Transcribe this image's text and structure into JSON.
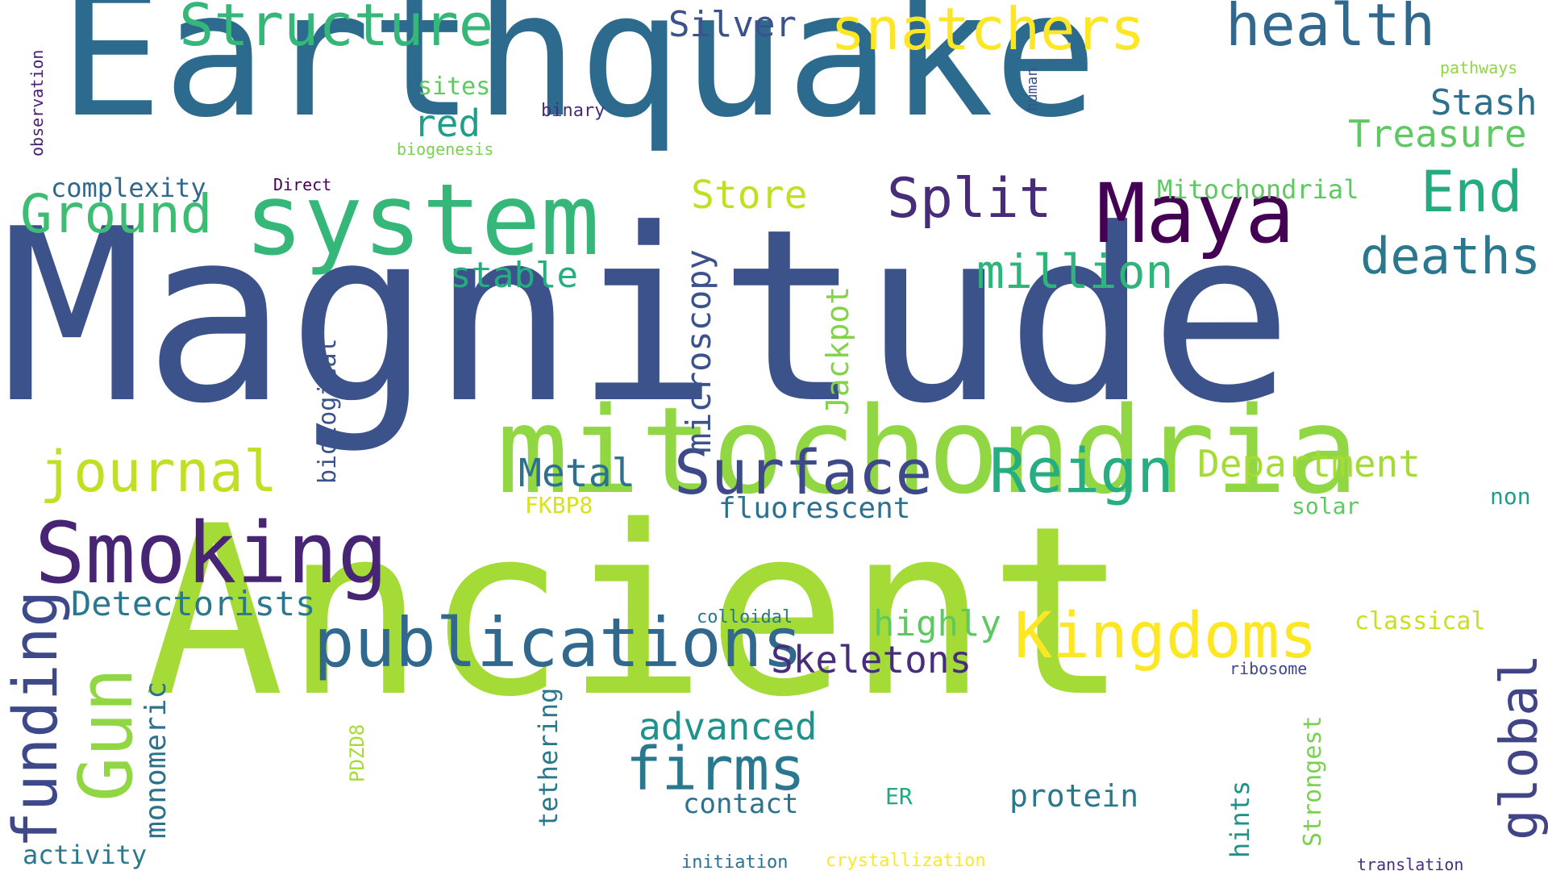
{
  "cloud": {
    "words": [
      {
        "text": "Magnitude",
        "color": "#3b528b"
      },
      {
        "text": "Earthquake",
        "color": "#2c6b8e"
      },
      {
        "text": "Ancient",
        "color": "#a5db36"
      },
      {
        "text": "mitochondria",
        "color": "#90d743"
      },
      {
        "text": "system",
        "color": "#35b779"
      },
      {
        "text": "Smoking",
        "color": "#482475"
      },
      {
        "text": "Maya",
        "color": "#440154"
      },
      {
        "text": "publications",
        "color": "#31688e"
      },
      {
        "text": "Kingdoms",
        "color": "#fde725"
      },
      {
        "text": "Structure",
        "color": "#35b779"
      },
      {
        "text": "snatchers",
        "color": "#fde725"
      },
      {
        "text": "health",
        "color": "#31688e"
      },
      {
        "text": "Surface",
        "color": "#3e4989"
      },
      {
        "text": "Reign",
        "color": "#26ad81"
      },
      {
        "text": "firms",
        "color": "#2a788e"
      },
      {
        "text": "journal",
        "color": "#c2df23"
      },
      {
        "text": "Split",
        "color": "#472c7a"
      },
      {
        "text": "Ground",
        "color": "#3dbc74"
      },
      {
        "text": "End",
        "color": "#25ab82"
      },
      {
        "text": "deaths",
        "color": "#2a788e"
      },
      {
        "text": "million",
        "color": "#2fb47c"
      },
      {
        "text": "Gun",
        "color": "#90d743"
      },
      {
        "text": "funding",
        "color": "#3e4989"
      },
      {
        "text": "global",
        "color": "#414487"
      },
      {
        "text": "Detectorists",
        "color": "#2a788e"
      },
      {
        "text": "Department",
        "color": "#a5db36"
      },
      {
        "text": "Skeletons",
        "color": "#472d7b"
      },
      {
        "text": "Metal",
        "color": "#2c728e"
      },
      {
        "text": "advanced",
        "color": "#20928c"
      },
      {
        "text": "microscopy",
        "color": "#3b528b"
      },
      {
        "text": "Stash",
        "color": "#2d708e"
      },
      {
        "text": "Treasure",
        "color": "#5ec962"
      },
      {
        "text": "red",
        "color": "#1f9e89"
      },
      {
        "text": "Silver",
        "color": "#3b528b"
      },
      {
        "text": "Store",
        "color": "#c2df23"
      },
      {
        "text": "stable",
        "color": "#26ad81"
      },
      {
        "text": "highly",
        "color": "#5ec962"
      },
      {
        "text": "fluorescent",
        "color": "#2c728e"
      },
      {
        "text": "protein",
        "color": "#2a788e"
      },
      {
        "text": "contact",
        "color": "#2c728e"
      },
      {
        "text": "Jackpot",
        "color": "#84d44b"
      },
      {
        "text": "monomeric",
        "color": "#2c728e"
      },
      {
        "text": "biological",
        "color": "#3b528b"
      },
      {
        "text": "Mitochondrial",
        "color": "#5ec962"
      },
      {
        "text": "complexity",
        "color": "#31688e"
      },
      {
        "text": "activity",
        "color": "#2a788e"
      },
      {
        "text": "tethering",
        "color": "#2a788e"
      },
      {
        "text": "Strongest",
        "color": "#7ad151"
      },
      {
        "text": "hints",
        "color": "#21918c"
      },
      {
        "text": "classical",
        "color": "#c8e020"
      },
      {
        "text": "sites",
        "color": "#5ec962"
      },
      {
        "text": "solar",
        "color": "#5ec962"
      },
      {
        "text": "non",
        "color": "#1f9e89"
      },
      {
        "text": "ER",
        "color": "#22a884"
      },
      {
        "text": "FKBP8",
        "color": "#d8e219"
      },
      {
        "text": "PDZD8",
        "color": "#a5db36"
      },
      {
        "text": "observation",
        "color": "#481f70"
      },
      {
        "text": "binary",
        "color": "#472c7a"
      },
      {
        "text": "biogenesis",
        "color": "#7ad151"
      },
      {
        "text": "Direct",
        "color": "#440154"
      },
      {
        "text": "human",
        "color": "#3b528b"
      },
      {
        "text": "pathways",
        "color": "#90d743"
      },
      {
        "text": "colloidal",
        "color": "#2a788e"
      },
      {
        "text": "ribosome",
        "color": "#3e4989"
      },
      {
        "text": "initiation",
        "color": "#2c728e"
      },
      {
        "text": "crystallization",
        "color": "#fde725"
      },
      {
        "text": "translation",
        "color": "#46307e"
      }
    ]
  }
}
